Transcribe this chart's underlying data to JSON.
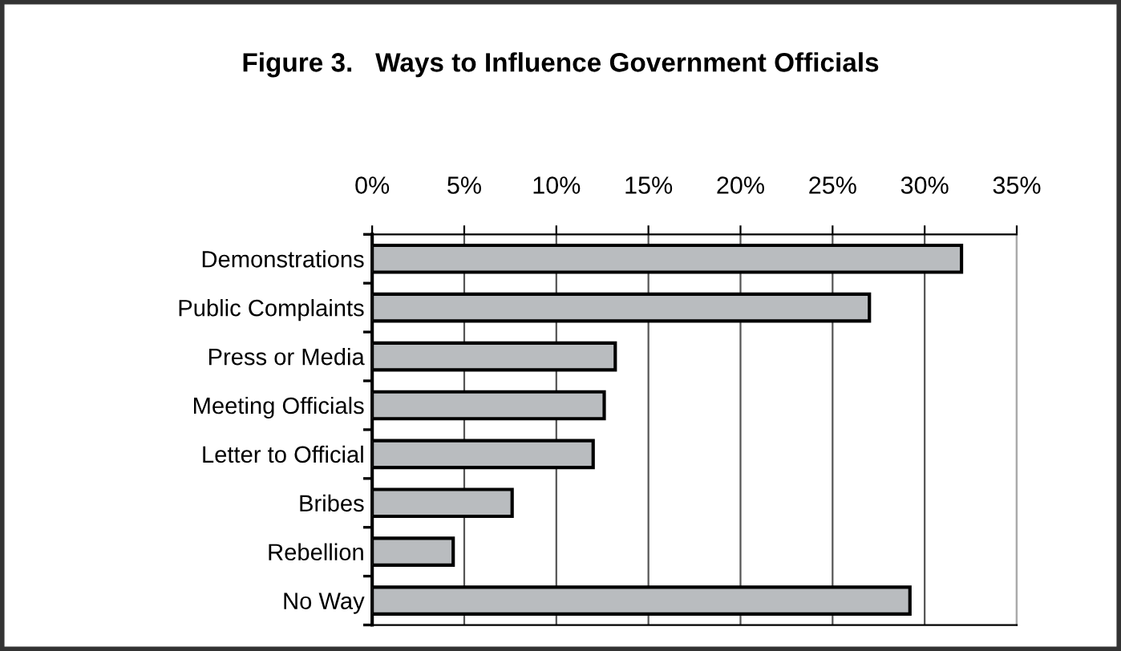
{
  "chart_data": {
    "type": "bar",
    "orientation": "horizontal",
    "title": "Figure 3.   Ways to Influence Government Officials",
    "categories": [
      "Demonstrations",
      "Public Complaints",
      "Press or Media",
      "Meeting Officials",
      "Letter to Official",
      "Bribes",
      "Rebellion",
      "No Way"
    ],
    "values": [
      32.0,
      27.0,
      13.2,
      12.6,
      12.0,
      7.6,
      4.4,
      29.2
    ],
    "color": "#b9bcbf",
    "xlim": [
      0,
      35
    ],
    "xticks": [
      {
        "value": 0,
        "label": "0%"
      },
      {
        "value": 5,
        "label": "5%"
      },
      {
        "value": 10,
        "label": "10%"
      },
      {
        "value": 15,
        "label": "15%"
      },
      {
        "value": 20,
        "label": "20%"
      },
      {
        "value": 25,
        "label": "25%"
      },
      {
        "value": 30,
        "label": "30%"
      },
      {
        "value": 35,
        "label": "35%"
      }
    ],
    "grid": "x"
  }
}
